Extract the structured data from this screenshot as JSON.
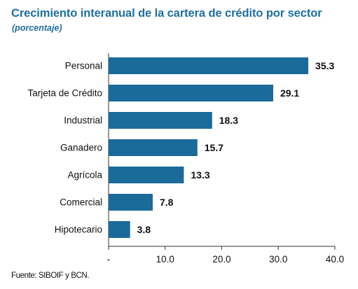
{
  "chart_data": {
    "type": "bar",
    "orientation": "horizontal",
    "title": "Crecimiento interanual de la cartera de crédito por sector",
    "subtitle": "(porcentaje)",
    "categories": [
      "Personal",
      "Tarjeta de Crédito",
      "Industrial",
      "Ganadero",
      "Agrícola",
      "Comercial",
      "Hipotecario"
    ],
    "values": [
      35.3,
      29.1,
      18.3,
      15.7,
      13.3,
      7.8,
      3.8
    ],
    "value_labels": [
      "35.3",
      "29.1",
      "18.3",
      "15.7",
      "13.3",
      "7.8",
      "3.8"
    ],
    "x_ticks": [
      "-",
      "10.0",
      "20.0",
      "30.0",
      "40.0"
    ],
    "xlim": [
      0,
      40
    ],
    "xlabel": "",
    "ylabel": "",
    "grid": false,
    "legend": "none",
    "bar_color": "#1a6a9a",
    "title_color": "#1f6f9f",
    "source": "Fuente: SIBOIF y BCN."
  }
}
